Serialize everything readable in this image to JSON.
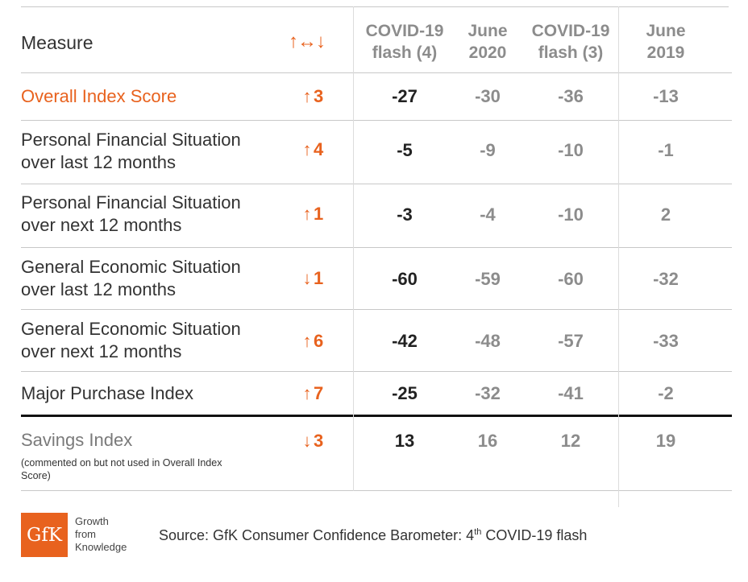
{
  "chart_data": {
    "type": "table",
    "columns": {
      "measure": "Measure",
      "change": "↑↔↓",
      "c0": [
        "COVID-19",
        "flash (4)"
      ],
      "c1": [
        "June",
        "2020"
      ],
      "c2": [
        "COVID-19",
        "flash (3)"
      ],
      "c3": [
        "June",
        "2019"
      ]
    },
    "rows": [
      {
        "label": [
          "Overall Index Score"
        ],
        "direction": "up",
        "arrow": "↑",
        "change": 3,
        "values": [
          -27,
          -30,
          -36,
          -13
        ]
      },
      {
        "label": [
          "Personal Financial Situation",
          "over last 12 months"
        ],
        "direction": "up",
        "arrow": "↑",
        "change": 4,
        "values": [
          -5,
          -9,
          -10,
          -1
        ]
      },
      {
        "label": [
          "Personal Financial Situation",
          "over next 12 months"
        ],
        "direction": "up",
        "arrow": "↑",
        "change": 1,
        "values": [
          -3,
          -4,
          -10,
          2
        ]
      },
      {
        "label": [
          "General Economic Situation",
          "over last 12 months"
        ],
        "direction": "down",
        "arrow": "↓",
        "change": 1,
        "values": [
          -60,
          -59,
          -60,
          -32
        ]
      },
      {
        "label": [
          "General Economic Situation",
          "over next 12 months"
        ],
        "direction": "up",
        "arrow": "↑",
        "change": 6,
        "values": [
          -42,
          -48,
          -57,
          -33
        ]
      },
      {
        "label": [
          "Major Purchase Index"
        ],
        "direction": "up",
        "arrow": "↑",
        "change": 7,
        "values": [
          -25,
          -32,
          -41,
          -2
        ]
      },
      {
        "label": [
          "Savings Index"
        ],
        "direction": "down",
        "arrow": "↓",
        "change": 3,
        "values": [
          13,
          16,
          12,
          19
        ]
      }
    ],
    "savings_note": "(commented on but not used in Overall Index Score)"
  },
  "footer": {
    "logo": "GfK",
    "tagline": [
      "Growth",
      "from",
      "Knowledge"
    ],
    "source_prefix": "Source: GfK Consumer Confidence Barometer: 4",
    "source_sup": "th",
    "source_suffix": " COVID-19 flash"
  },
  "colors": {
    "accent": "#e8621e",
    "dark": "#222222",
    "muted": "#8c8c8c"
  }
}
